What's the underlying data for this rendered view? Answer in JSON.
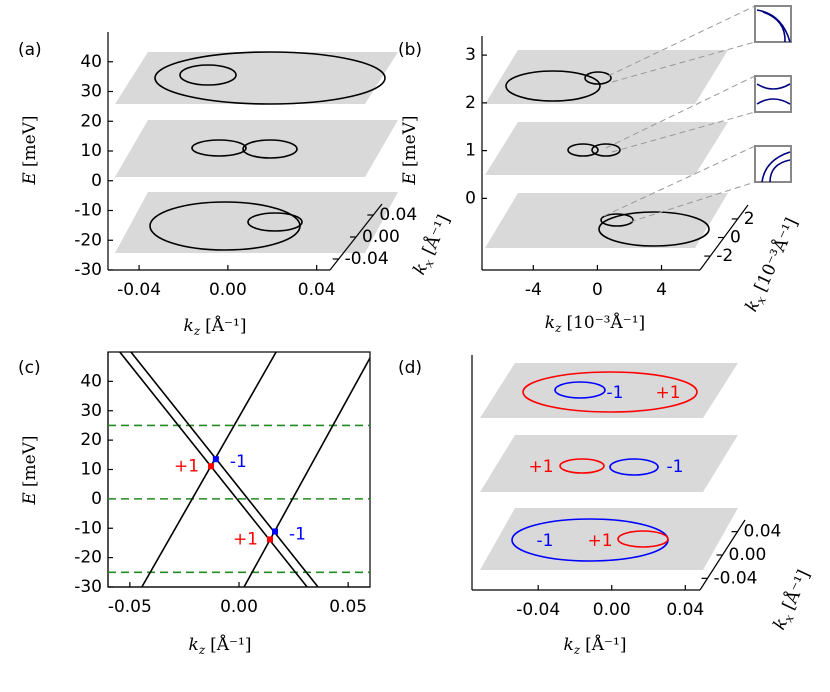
{
  "panels": [
    {
      "label": "(a)",
      "type": "3d",
      "ylabel": {
        "symbol": "E",
        "unit": "[meV]"
      },
      "xlabel": {
        "symbol": "k",
        "subscript": "z",
        "unit": "[Å⁻¹]"
      },
      "kxlabel": {
        "symbol": "k",
        "subscript": "x",
        "unit": "[Å⁻¹]"
      },
      "ylim": [
        -30,
        50
      ],
      "yticks": [
        40,
        30,
        20,
        10,
        0,
        -10,
        -20,
        -30
      ],
      "xlim": [
        -0.054,
        0.046
      ],
      "xticks": [
        -0.04,
        {
          "value": 0,
          "label": "0.00"
        },
        0.04
      ],
      "kxlim": [
        -0.06,
        0.06
      ],
      "kxticks": [
        0.04,
        {
          "value": 0,
          "label": "0.00"
        },
        -0.04
      ]
    },
    {
      "label": "(b)",
      "type": "3d",
      "ylabel": {
        "symbol": "E",
        "unit": "[meV]"
      },
      "xlabel": {
        "symbol": "k",
        "subscript": "z",
        "unit": "[10⁻³Å⁻¹]"
      },
      "kxlabel": {
        "symbol": "k",
        "subscript": "x",
        "unit": "[10⁻³Å⁻¹]"
      },
      "ylim": [
        -1.5,
        3.4
      ],
      "yticks": [
        3,
        2,
        1,
        0
      ],
      "xlim": [
        -7.2,
        6.4
      ],
      "xticks": [
        -4,
        0,
        4
      ],
      "kxlim": [
        -3.5,
        3.5
      ],
      "kxticks": [
        2,
        0,
        -2
      ]
    },
    {
      "label": "(c)",
      "type": "line",
      "ylabel": {
        "symbol": "E",
        "unit": "[meV]"
      },
      "xlabel": {
        "symbol": "k",
        "subscript": "z",
        "unit": "[Å⁻¹]"
      },
      "ylim": [
        -30,
        50
      ],
      "yticks": [
        40,
        30,
        20,
        10,
        0,
        -10,
        -20,
        -30
      ],
      "xlim": [
        -0.06,
        0.06
      ],
      "xticks": [
        -0.05,
        {
          "value": 0,
          "label": "0.00"
        },
        0.05
      ],
      "color": "#000000",
      "series": [
        {
          "x": [
            -0.0546,
            0.0312
          ],
          "y": [
            50,
            -30
          ]
        },
        {
          "x": [
            -0.0495,
            0.0362
          ],
          "y": [
            50,
            -30
          ]
        },
        {
          "x": [
            -0.0445,
            0.017
          ],
          "y": [
            -30,
            50
          ]
        },
        {
          "x": [
            0.0023,
            0.0615
          ],
          "y": [
            -30,
            50
          ]
        }
      ],
      "hlines": {
        "values": [
          25,
          0,
          -25
        ],
        "color": "#228b22"
      },
      "points": [
        {
          "x": -0.0128,
          "y": 11.1,
          "color": "#ff0000",
          "label": "+1"
        },
        {
          "x": -0.0106,
          "y": 13.5,
          "color": "#0000ff",
          "label": "-1"
        },
        {
          "x": 0.0142,
          "y": -13.8,
          "color": "#ff0000",
          "label": "+1"
        },
        {
          "x": 0.0165,
          "y": -11.1,
          "color": "#0000ff",
          "label": "-1"
        }
      ]
    },
    {
      "label": "(d)",
      "type": "3d",
      "xlabel": {
        "symbol": "k",
        "subscript": "z",
        "unit": "[Å⁻¹]"
      },
      "kxlabel": {
        "symbol": "k",
        "subscript": "x",
        "unit": "[Å⁻¹]"
      },
      "xlim": [
        -0.076,
        0.048
      ],
      "xticks": [
        -0.04,
        {
          "value": 0,
          "label": "0.00"
        },
        0.04
      ],
      "kxlim": [
        -0.06,
        0.06
      ],
      "kxticks": [
        0.04,
        {
          "value": 0,
          "label": "0.00"
        },
        -0.04
      ],
      "annotations": [
        {
          "text": "-1",
          "color": "#0000ff"
        },
        {
          "text": "+1",
          "color": "#ff0000"
        },
        {
          "text": "+1",
          "color": "#ff0000"
        },
        {
          "text": "-1",
          "color": "#0000ff"
        },
        {
          "text": "-1",
          "color": "#0000ff"
        },
        {
          "text": "+1",
          "color": "#ff0000"
        }
      ]
    }
  ]
}
